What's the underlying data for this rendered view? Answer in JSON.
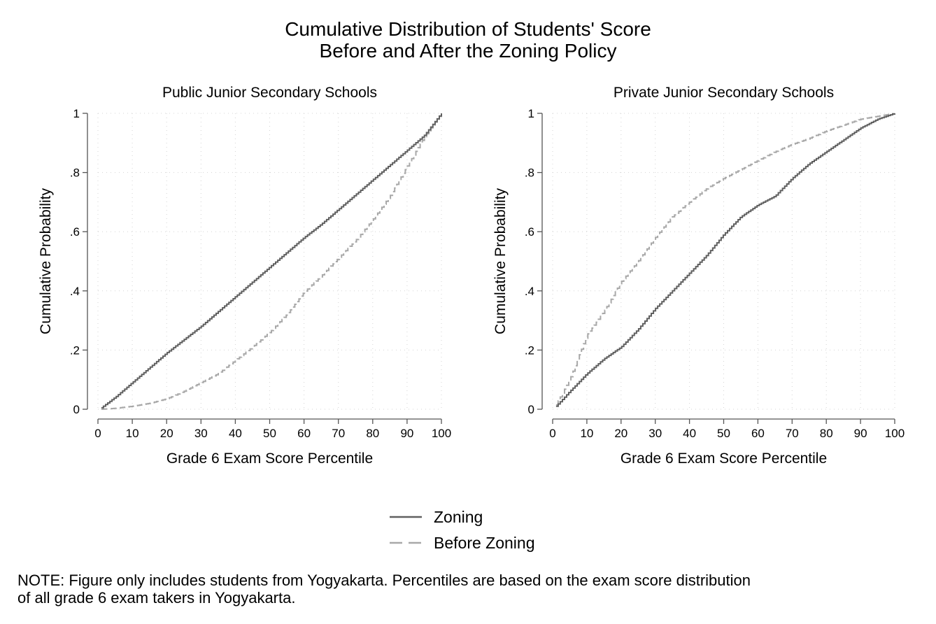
{
  "figure": {
    "title_lines": [
      "Cumulative Distribution of Students' Score",
      "Before and After the Zoning Policy"
    ],
    "legend": [
      {
        "label": "Zoning",
        "color": "#606060",
        "dash": "solid"
      },
      {
        "label": "Before Zoning",
        "color": "#a8a8a8",
        "dash": "dashed"
      }
    ],
    "note_lines": [
      "NOTE: Figure only includes students from Yogyakarta. Percentiles are based on the exam score distribution",
      "of all grade 6 exam takers in Yogyakarta."
    ]
  },
  "chart_data": [
    {
      "type": "line",
      "step": true,
      "title": "Public Junior Secondary Schools",
      "xlabel": "Grade 6 Exam Score Percentile",
      "ylabel": "Cumulative Probability",
      "xlim": [
        0,
        100
      ],
      "ylim": [
        0,
        1
      ],
      "xticks": [
        0,
        10,
        20,
        30,
        40,
        50,
        60,
        70,
        80,
        90,
        100
      ],
      "yticks": [
        0,
        0.2,
        0.4,
        0.6,
        0.8,
        1
      ],
      "ytick_labels": [
        "0",
        ".2",
        ".4",
        ".6",
        ".8",
        "1"
      ],
      "grid": true,
      "x": [
        1,
        5,
        10,
        15,
        20,
        25,
        30,
        35,
        40,
        45,
        50,
        55,
        60,
        65,
        70,
        75,
        80,
        85,
        90,
        95,
        100
      ],
      "series": [
        {
          "name": "Zoning",
          "color": "#606060",
          "dash": "solid",
          "values": [
            0.005,
            0.04,
            0.09,
            0.14,
            0.19,
            0.235,
            0.28,
            0.33,
            0.38,
            0.43,
            0.48,
            0.53,
            0.58,
            0.625,
            0.675,
            0.725,
            0.775,
            0.825,
            0.875,
            0.925,
            1.0
          ]
        },
        {
          "name": "Before Zoning",
          "color": "#a8a8a8",
          "dash": "dashed",
          "values": [
            0.0,
            0.003,
            0.01,
            0.02,
            0.035,
            0.06,
            0.09,
            0.12,
            0.165,
            0.21,
            0.26,
            0.32,
            0.395,
            0.45,
            0.51,
            0.57,
            0.64,
            0.72,
            0.82,
            0.92,
            1.0
          ]
        }
      ]
    },
    {
      "type": "line",
      "step": true,
      "title": "Private Junior Secondary Schools",
      "xlabel": "Grade 6 Exam Score Percentile",
      "ylabel": "Cumulative Probability",
      "xlim": [
        0,
        100
      ],
      "ylim": [
        0,
        1
      ],
      "xticks": [
        0,
        10,
        20,
        30,
        40,
        50,
        60,
        70,
        80,
        90,
        100
      ],
      "yticks": [
        0,
        0.2,
        0.4,
        0.6,
        0.8,
        1
      ],
      "ytick_labels": [
        "0",
        ".2",
        ".4",
        ".6",
        ".8",
        "1"
      ],
      "grid": true,
      "x": [
        1,
        5,
        10,
        15,
        20,
        25,
        30,
        35,
        40,
        45,
        50,
        55,
        60,
        65,
        70,
        75,
        80,
        85,
        90,
        95,
        100
      ],
      "series": [
        {
          "name": "Zoning",
          "color": "#606060",
          "dash": "solid",
          "values": [
            0.01,
            0.06,
            0.12,
            0.17,
            0.21,
            0.27,
            0.34,
            0.4,
            0.46,
            0.52,
            0.59,
            0.65,
            0.69,
            0.72,
            0.78,
            0.83,
            0.87,
            0.91,
            0.95,
            0.98,
            1.0
          ]
        },
        {
          "name": "Before Zoning",
          "color": "#a8a8a8",
          "dash": "dashed",
          "values": [
            0.015,
            0.1,
            0.25,
            0.33,
            0.43,
            0.5,
            0.58,
            0.65,
            0.7,
            0.745,
            0.78,
            0.81,
            0.84,
            0.87,
            0.895,
            0.915,
            0.94,
            0.96,
            0.98,
            0.99,
            1.0
          ]
        }
      ]
    }
  ]
}
